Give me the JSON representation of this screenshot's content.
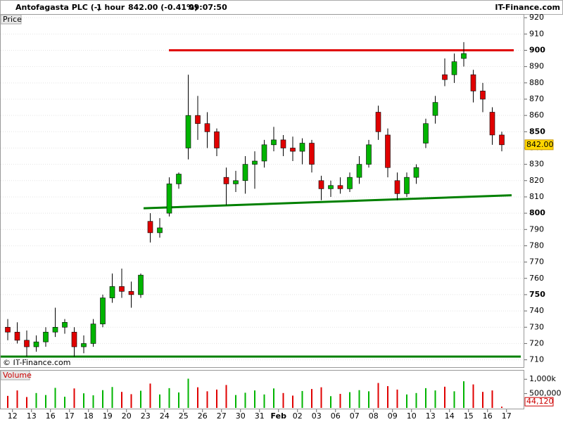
{
  "header": {
    "title": "Antofagasta PLC (-)",
    "interval": "1 hour",
    "quote": "842.00 (-0.41%)",
    "time": "09:07:50",
    "site": "IT-Finance.com",
    "price_panel": "Price",
    "copyright": "© IT-Finance.com",
    "volume_panel": "Volume"
  },
  "chart_data": [
    {
      "type": "candlestick",
      "categories": [
        "12",
        null,
        "13",
        null,
        "16",
        null,
        "17",
        null,
        "18",
        null,
        "19",
        null,
        "20",
        null,
        "23",
        null,
        "24",
        null,
        "25",
        null,
        "26",
        null,
        "27",
        null,
        "30",
        null,
        "31",
        null,
        "Feb",
        null,
        "02",
        null,
        "03",
        null,
        "06",
        null,
        "07",
        null,
        "08",
        null,
        "09",
        null,
        "10",
        null,
        "13",
        null,
        "14",
        null,
        "15",
        null,
        "16",
        null,
        "17"
      ],
      "open": [
        730,
        727,
        722,
        718,
        721,
        727,
        730,
        727,
        718,
        720,
        732,
        748,
        755,
        752,
        750,
        795,
        788,
        800,
        818,
        840,
        860,
        855,
        850,
        822,
        818,
        820,
        830,
        832,
        842,
        845,
        840,
        838,
        843,
        820,
        815,
        817,
        815,
        822,
        830,
        862,
        848,
        820,
        812,
        822,
        843,
        860,
        885,
        885,
        895,
        885,
        875,
        862,
        848
      ],
      "high": [
        735,
        733,
        728,
        725,
        730,
        742,
        735,
        730,
        725,
        735,
        750,
        763,
        766,
        758,
        763,
        800,
        797,
        822,
        825,
        885,
        872,
        862,
        852,
        828,
        826,
        835,
        838,
        845,
        853,
        848,
        847,
        846,
        845,
        823,
        820,
        822,
        825,
        835,
        845,
        866,
        852,
        825,
        825,
        830,
        858,
        872,
        895,
        898,
        905,
        888,
        880,
        865,
        850
      ],
      "low": [
        722,
        720,
        712,
        715,
        718,
        724,
        726,
        712,
        714,
        718,
        730,
        745,
        748,
        742,
        748,
        782,
        785,
        798,
        815,
        833,
        845,
        840,
        835,
        805,
        813,
        812,
        815,
        828,
        838,
        835,
        832,
        830,
        825,
        808,
        810,
        812,
        813,
        818,
        828,
        845,
        822,
        808,
        810,
        818,
        840,
        855,
        878,
        880,
        890,
        868,
        862,
        842,
        838
      ],
      "close": [
        727,
        722,
        718,
        721,
        727,
        730,
        733,
        718,
        720,
        732,
        748,
        755,
        752,
        750,
        762,
        788,
        791,
        818,
        824,
        860,
        855,
        850,
        840,
        818,
        820,
        830,
        832,
        842,
        845,
        840,
        838,
        843,
        830,
        815,
        817,
        815,
        822,
        830,
        842,
        850,
        828,
        812,
        822,
        828,
        855,
        868,
        882,
        893,
        898,
        875,
        870,
        848,
        842
      ],
      "up_color": "#00b400",
      "down_color": "#e00000",
      "ylim": [
        705.5,
        921.8
      ],
      "yticks": [
        710,
        720,
        730,
        740,
        750,
        760,
        770,
        780,
        790,
        800,
        810,
        820,
        830,
        840,
        850,
        860,
        870,
        880,
        890,
        900,
        910,
        920
      ],
      "grid": true,
      "last_price": {
        "value": 842,
        "label": "842.00"
      },
      "lines": [
        {
          "color": "#e00000",
          "values": [
            900,
            900
          ]
        },
        {
          "color": "#008000",
          "values": [
            803,
            811
          ]
        },
        {
          "color": "#008000",
          "values": [
            712,
            712
          ]
        }
      ]
    },
    {
      "type": "bar",
      "values": [
        420000,
        610000,
        380000,
        520000,
        450000,
        700000,
        390000,
        680000,
        510000,
        440000,
        620000,
        730000,
        560000,
        480000,
        600000,
        850000,
        470000,
        690000,
        540000,
        1020000,
        720000,
        580000,
        640000,
        800000,
        450000,
        530000,
        610000,
        470000,
        680000,
        520000,
        430000,
        590000,
        660000,
        720000,
        410000,
        490000,
        550000,
        620000,
        580000,
        870000,
        760000,
        640000,
        470000,
        520000,
        690000,
        610000,
        740000,
        580000,
        930000,
        820000,
        560000,
        610000,
        44120
      ],
      "ylim": [
        0,
        1300000
      ],
      "yticks": [
        {
          "value": 1000000,
          "label": "1,000k"
        },
        {
          "value": 500000,
          "label": "500,000"
        }
      ],
      "last_value": {
        "value": 44120,
        "label": "44,120"
      }
    }
  ]
}
